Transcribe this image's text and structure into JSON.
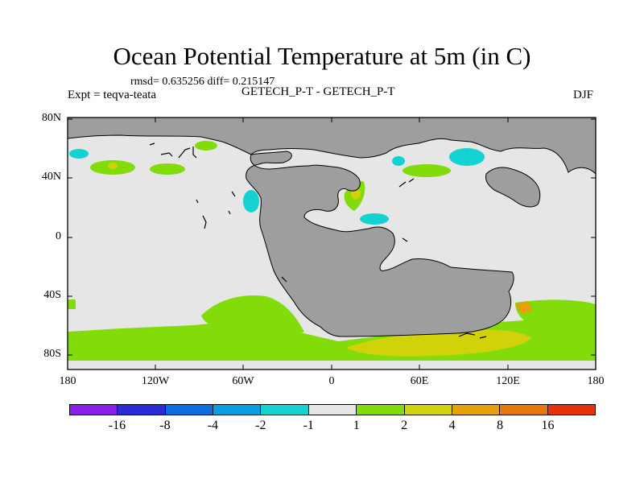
{
  "title": "Ocean Potential Temperature at 5m (in C)",
  "stats": "rmsd= 0.635256  diff= 0.215147",
  "experiment": "Expt = teqva-teata",
  "dataset": "GETECH_P-T - GETECH_P-T",
  "season": "DJF",
  "map": {
    "projection": "cylindrical equidistant",
    "lat_labels": [
      "80N",
      "40N",
      "0",
      "40S",
      "80S"
    ],
    "lon_labels": [
      "180",
      "120W",
      "60W",
      "0",
      "60E",
      "120E",
      "180"
    ],
    "land_color": "#9e9e9e",
    "ocean_neutral_color": "#e6e6e6"
  },
  "colorbar": {
    "colors": [
      "#8a1ee6",
      "#2b2bd6",
      "#0a6ee0",
      "#0aa0e0",
      "#12d2d2",
      "#e6e6e6",
      "#82dc0a",
      "#d2d20a",
      "#e6a00a",
      "#e6780a",
      "#e6320a"
    ],
    "labels": [
      "-16",
      "-8",
      "-4",
      "-2",
      "-1",
      "1",
      "2",
      "4",
      "8",
      "16"
    ]
  }
}
